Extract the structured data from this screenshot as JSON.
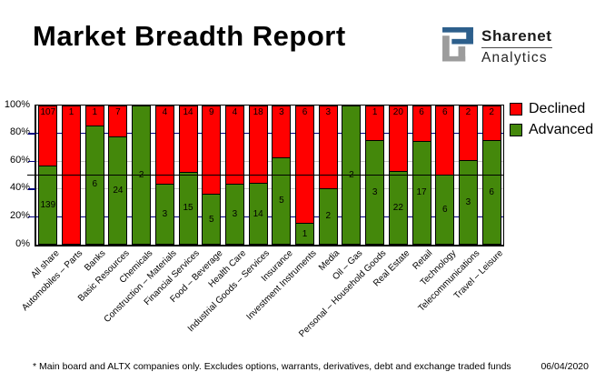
{
  "header": {
    "title": "Market Breadth Report",
    "logo": {
      "brand": "Sharenet",
      "sub": "Analytics",
      "blue": "#2D5F8C",
      "gray": "#9C9C9C"
    }
  },
  "chart_data": {
    "type": "bar",
    "stacked": true,
    "stacking": "percent",
    "categories": [
      "All share",
      "Automobiles – Parts",
      "Banks",
      "Basic Resources",
      "Chemicals",
      "Construction – Materials",
      "Financial Services",
      "Food – Beverage",
      "Health Care",
      "Industrial Goods – Services",
      "Insurance",
      "Investment Instruments",
      "Media",
      "Oil – Gas",
      "Personal – Household Goods",
      "Real Estate",
      "Retail",
      "Technology",
      "Telecommunications",
      "Travel – Leisure"
    ],
    "series": [
      {
        "name": "Declined",
        "color": "#FF0000",
        "values": [
          107,
          1,
          1,
          7,
          0,
          4,
          14,
          9,
          4,
          18,
          3,
          6,
          3,
          0,
          1,
          20,
          6,
          6,
          2,
          2
        ]
      },
      {
        "name": "Advanced",
        "color": "#44880B",
        "values": [
          139,
          0,
          6,
          24,
          2,
          3,
          15,
          5,
          3,
          14,
          5,
          1,
          2,
          2,
          3,
          22,
          17,
          6,
          3,
          6
        ]
      }
    ],
    "ylim": [
      0,
      100
    ],
    "y_ticks": [
      {
        "label": "100%",
        "value": 100
      },
      {
        "label": "80%",
        "value": 80
      },
      {
        "label": "60%",
        "value": 60
      },
      {
        "label": "40%",
        "value": 40
      },
      {
        "label": "20%",
        "value": 20
      },
      {
        "label": "0%",
        "value": 0
      }
    ],
    "gridlines": [
      {
        "value": 80,
        "color": "#000080"
      },
      {
        "value": 60,
        "color": "#C6C6C6"
      },
      {
        "value": 40,
        "color": "#C6C6C6"
      },
      {
        "value": 20,
        "color": "#000080"
      }
    ],
    "midline_value": 50,
    "legend_position": "top-right",
    "grid": true
  },
  "footer": {
    "note": "* Main board and ALTX companies only. Excludes options, warrants, derivatives, debt and exchange traded funds",
    "date": "06/04/2020"
  }
}
